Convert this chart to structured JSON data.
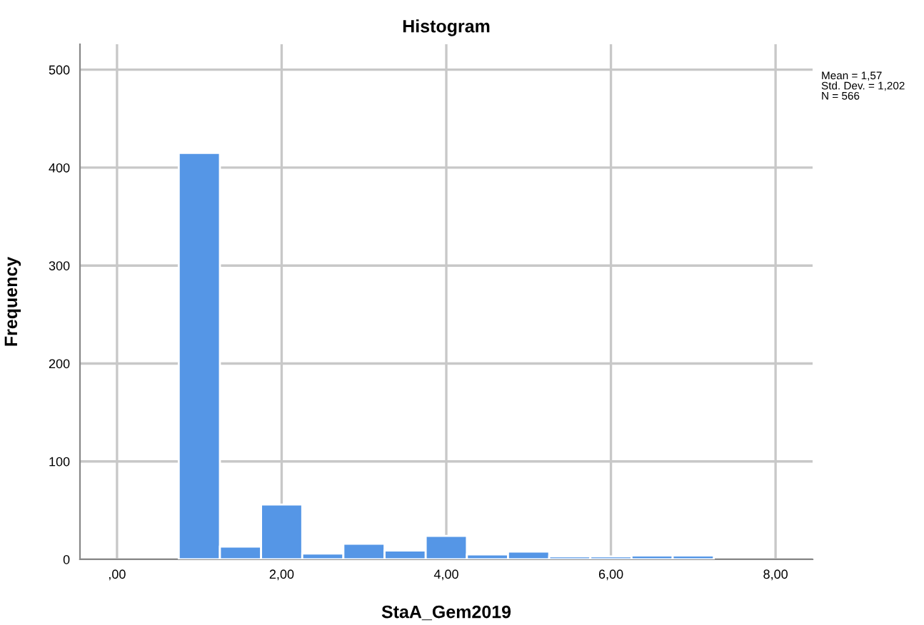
{
  "chart_data": {
    "type": "histogram",
    "title": "Histogram",
    "xlabel": "StaA_Gem2019",
    "ylabel": "Frequency",
    "bins": [
      0.75,
      1.25,
      1.75,
      2.25,
      2.75,
      3.25,
      3.75,
      4.25,
      4.75,
      5.25,
      5.75,
      6.25,
      6.75,
      7.25
    ],
    "values": [
      415,
      13,
      56,
      6,
      16,
      9,
      24,
      5,
      8,
      3,
      3,
      4,
      4
    ],
    "color": "#5596e6",
    "xlim": [
      -0.45,
      8.45
    ],
    "ylim": [
      0,
      526
    ],
    "xticks": [
      {
        "value": 0,
        "label": ",00"
      },
      {
        "value": 2,
        "label": "2,00"
      },
      {
        "value": 4,
        "label": "4,00"
      },
      {
        "value": 6,
        "label": "6,00"
      },
      {
        "value": 8,
        "label": "8,00"
      }
    ],
    "yticks": [
      0,
      100,
      200,
      300,
      400,
      500
    ],
    "grid": true,
    "annotations": [
      "Mean = 1,57\nStd. Dev. = 1,202\nN = 566"
    ]
  }
}
